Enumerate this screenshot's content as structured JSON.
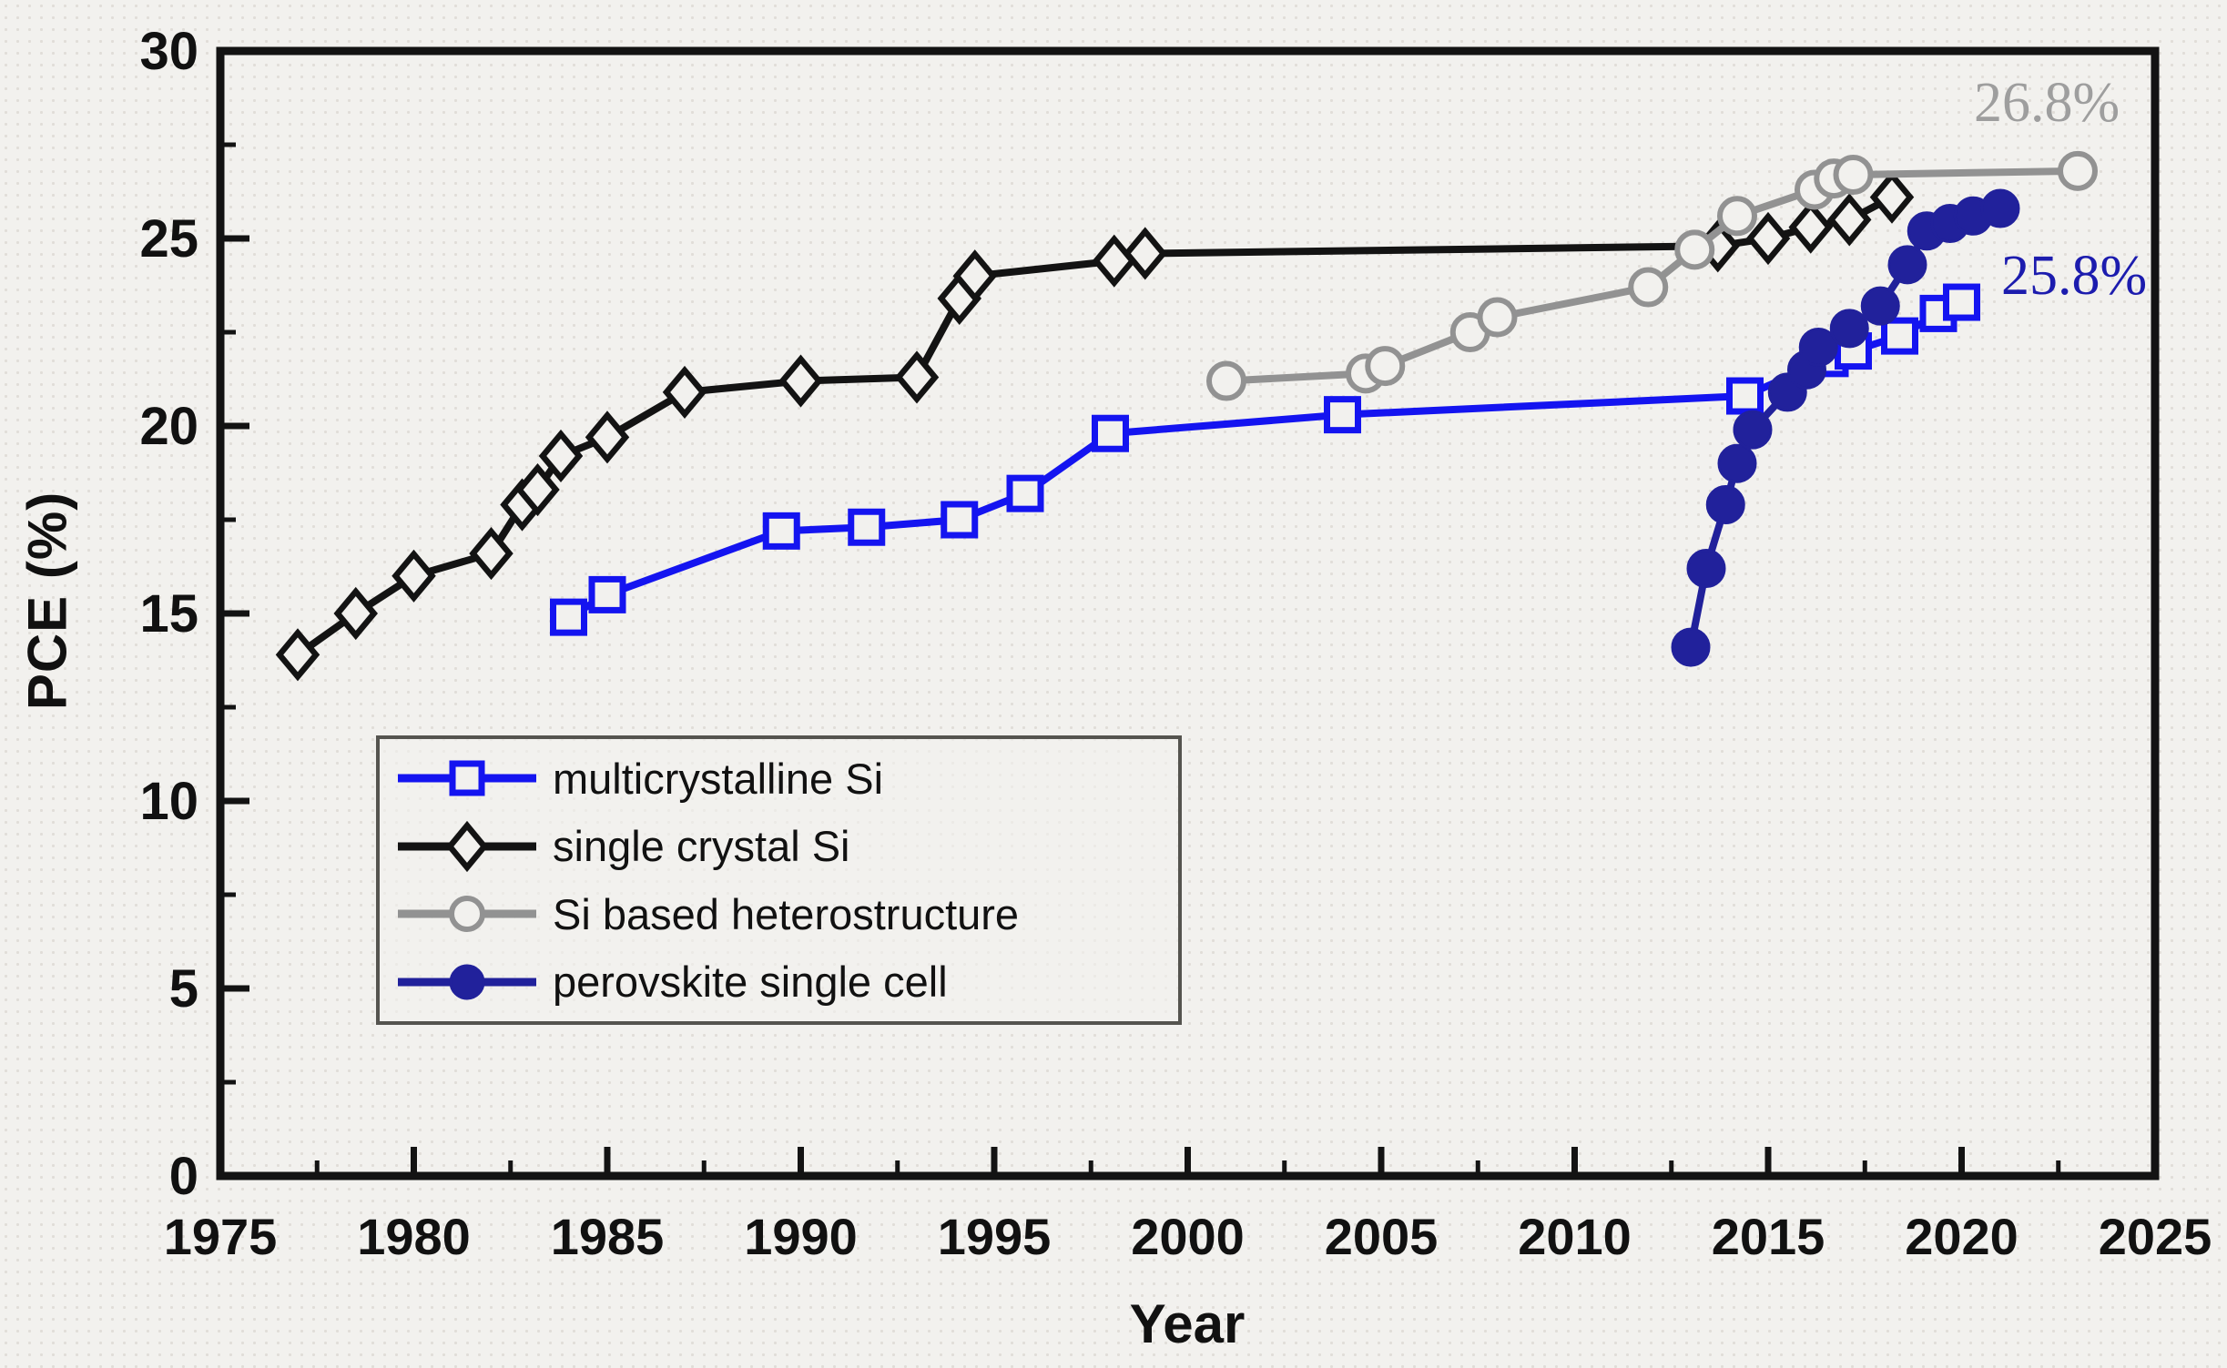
{
  "figure": {
    "background_color": "#f2f1ee",
    "frame_color": "#131313"
  },
  "chart_data": {
    "type": "line",
    "title": "",
    "xlabel": "Year",
    "ylabel": "PCE (%)",
    "xlim": [
      1975,
      2025
    ],
    "ylim": [
      0,
      30
    ],
    "x_major_tick_step": 5,
    "x_minor_tick_step": 2.5,
    "y_major_tick_step": 5,
    "y_minor_tick_step": 2.5,
    "x_tick_labels": [
      "1975",
      "1980",
      "1985",
      "1990",
      "1995",
      "2000",
      "2005",
      "2010",
      "2015",
      "2020",
      "2025"
    ],
    "y_tick_labels": [
      "0",
      "5",
      "10",
      "15",
      "20",
      "25",
      "30"
    ],
    "grid": false,
    "legend_position": "inside-lower-left",
    "series": [
      {
        "name": "multicrystalline Si",
        "color": "#1414f0",
        "marker": "open-square",
        "points": [
          [
            1984.0,
            14.9
          ],
          [
            1985.0,
            15.5
          ],
          [
            1989.5,
            17.2
          ],
          [
            1991.7,
            17.3
          ],
          [
            1994.1,
            17.5
          ],
          [
            1995.8,
            18.2
          ],
          [
            1998.0,
            19.8
          ],
          [
            2004.0,
            20.3
          ],
          [
            2014.4,
            20.8
          ],
          [
            2016.6,
            21.8
          ],
          [
            2017.2,
            22.0
          ],
          [
            2018.4,
            22.4
          ],
          [
            2019.4,
            23.0
          ],
          [
            2020.0,
            23.3
          ]
        ]
      },
      {
        "name": "single crystal Si",
        "color": "#131313",
        "marker": "open-diamond",
        "points": [
          [
            1977.0,
            13.9
          ],
          [
            1978.5,
            15.0
          ],
          [
            1980.0,
            16.0
          ],
          [
            1982.0,
            16.6
          ],
          [
            1982.8,
            17.9
          ],
          [
            1983.2,
            18.3
          ],
          [
            1983.8,
            19.2
          ],
          [
            1985.0,
            19.7
          ],
          [
            1987.0,
            20.9
          ],
          [
            1990.0,
            21.2
          ],
          [
            1993.0,
            21.3
          ],
          [
            1994.1,
            23.4
          ],
          [
            1994.5,
            24.0
          ],
          [
            1998.1,
            24.4
          ],
          [
            1998.9,
            24.6
          ],
          [
            2013.7,
            24.8
          ],
          [
            2015.0,
            25.0
          ],
          [
            2016.1,
            25.3
          ],
          [
            2017.1,
            25.5
          ],
          [
            2018.2,
            26.1
          ]
        ]
      },
      {
        "name": "Si based heterostructure",
        "color": "#929292",
        "marker": "open-circle",
        "points": [
          [
            2001.0,
            21.2
          ],
          [
            2004.6,
            21.4
          ],
          [
            2005.1,
            21.6
          ],
          [
            2007.3,
            22.5
          ],
          [
            2008.0,
            22.9
          ],
          [
            2011.9,
            23.7
          ],
          [
            2013.1,
            24.7
          ],
          [
            2014.2,
            25.6
          ],
          [
            2016.2,
            26.3
          ],
          [
            2016.7,
            26.6
          ],
          [
            2017.2,
            26.7
          ],
          [
            2023.0,
            26.8
          ]
        ]
      },
      {
        "name": "perovskite single cell",
        "color": "#21219b",
        "marker": "filled-circle",
        "points": [
          [
            2013.0,
            14.1
          ],
          [
            2013.4,
            16.2
          ],
          [
            2013.9,
            17.9
          ],
          [
            2014.2,
            19.0
          ],
          [
            2014.6,
            19.9
          ],
          [
            2015.5,
            20.9
          ],
          [
            2016.0,
            21.5
          ],
          [
            2016.3,
            22.1
          ],
          [
            2017.1,
            22.6
          ],
          [
            2017.9,
            23.2
          ],
          [
            2018.6,
            24.3
          ],
          [
            2019.1,
            25.2
          ],
          [
            2019.7,
            25.4
          ],
          [
            2020.3,
            25.6
          ],
          [
            2021.0,
            25.8
          ]
        ]
      }
    ],
    "annotations": [
      {
        "text": "26.8%",
        "color": "#9e9e9e",
        "x": 2022.8,
        "y": 28.5
      },
      {
        "text": "25.8%",
        "color": "#1c1cae",
        "x": 2022.6,
        "y": 23.9
      }
    ]
  }
}
